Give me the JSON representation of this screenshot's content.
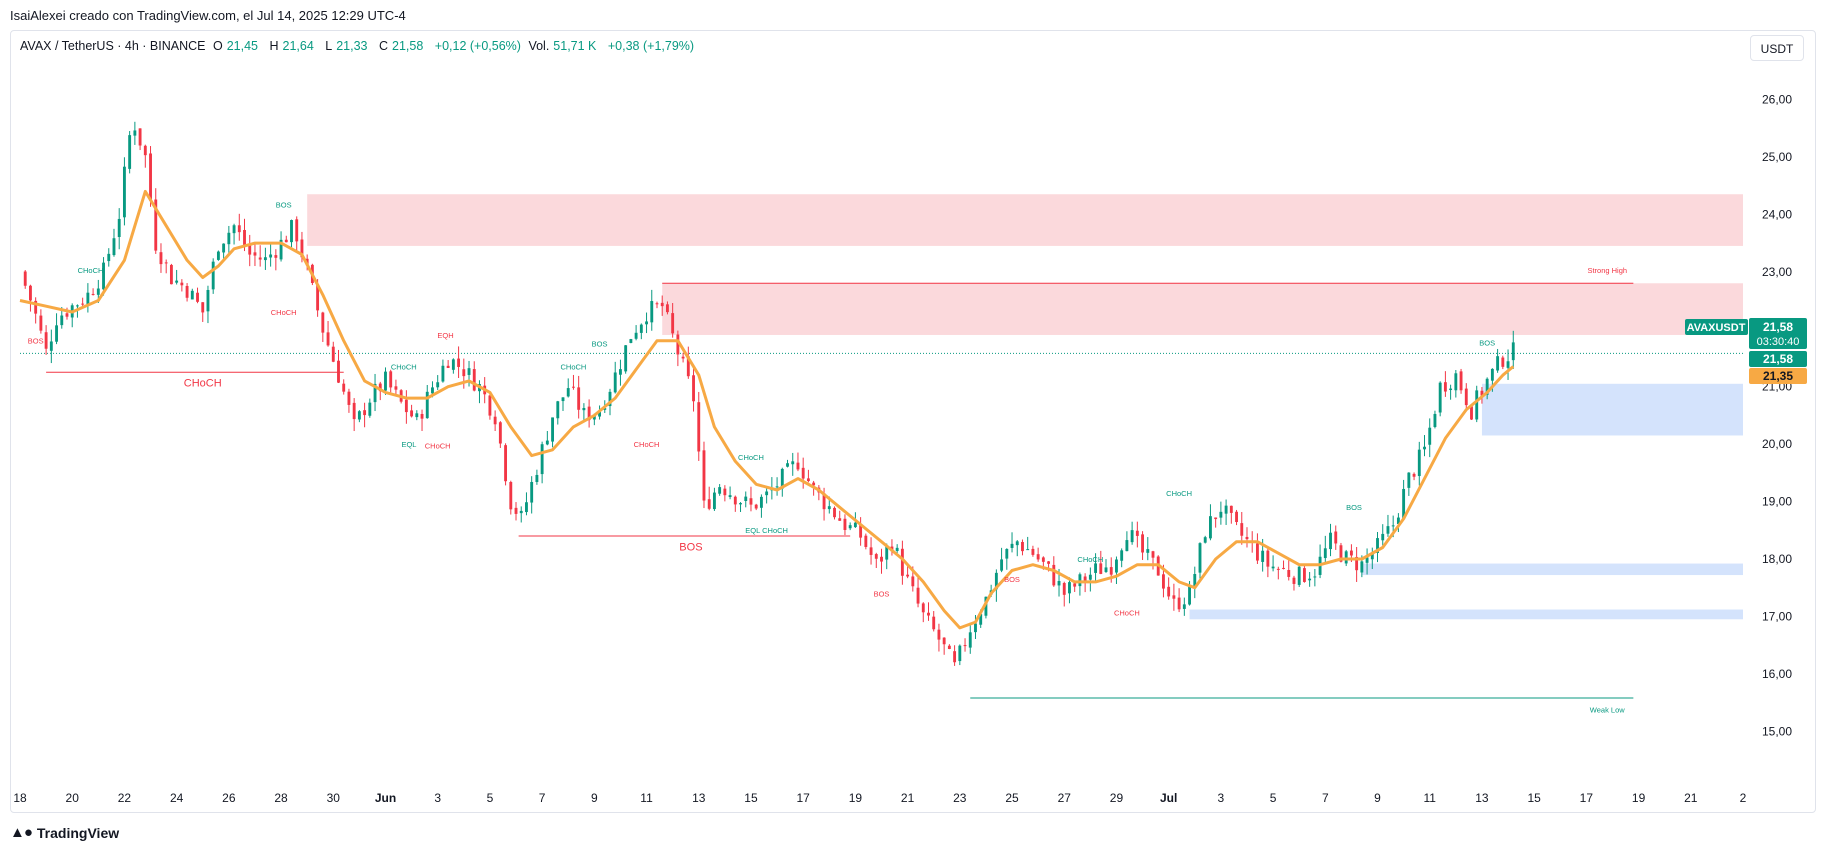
{
  "attribution": "IsaiAlexei creado con TradingView.com, el Jul 14, 2025 12:29 UTC-4",
  "legend": {
    "symbol": "AVAX / TetherUS · 4h · BINANCE",
    "o_label": "O",
    "o_value": "21,45",
    "h_label": "H",
    "h_value": "21,64",
    "l_label": "L",
    "l_value": "21,33",
    "c_label": "C",
    "c_value": "21,58",
    "change": "+0,12 (+0,56%)",
    "vol_label": "Vol.",
    "vol_value": "51,71 K",
    "vol_change": "+0,38 (+1,79%)"
  },
  "currency_badge": "USDT",
  "footer_brand": "TradingView",
  "colors": {
    "up": "#089981",
    "down": "#f23645",
    "ema": "#f7a944",
    "supply": "#fbd5d8",
    "demand": "#cfe0fc",
    "grid": "#e0e3eb",
    "axis_text": "#131722"
  },
  "price_badges": {
    "symbol_tag": "AVAXUSDT",
    "last": "21,58",
    "countdown": "03:30:40",
    "second": "21,58",
    "ema": "21,35"
  },
  "chart_data": {
    "type": "candlestick",
    "timeframe": "4h",
    "ylim": [
      14.5,
      26.6
    ],
    "yticks": [
      {
        "value": 26,
        "label": "26,00"
      },
      {
        "value": 25,
        "label": "25,00"
      },
      {
        "value": 24,
        "label": "24,00"
      },
      {
        "value": 23,
        "label": "23,00"
      },
      {
        "value": 22,
        "label": "22,00"
      },
      {
        "value": 21,
        "label": "21,00"
      },
      {
        "value": 20,
        "label": "20,00"
      },
      {
        "value": 19,
        "label": "19,00"
      },
      {
        "value": 18,
        "label": "18,00"
      },
      {
        "value": 17,
        "label": "17,00"
      },
      {
        "value": 16,
        "label": "16,00"
      },
      {
        "value": 15,
        "label": "15,00"
      }
    ],
    "xlim_days": [
      0,
      33
    ],
    "xticks": [
      {
        "day": 0,
        "label": "18"
      },
      {
        "day": 1,
        "label": "20"
      },
      {
        "day": 2,
        "label": "22"
      },
      {
        "day": 3,
        "label": "24"
      },
      {
        "day": 4,
        "label": "26"
      },
      {
        "day": 5,
        "label": "28"
      },
      {
        "day": 6,
        "label": "30"
      },
      {
        "day": 7,
        "label": "Jun",
        "bold": true
      },
      {
        "day": 8,
        "label": "3"
      },
      {
        "day": 9,
        "label": "5"
      },
      {
        "day": 10,
        "label": "7"
      },
      {
        "day": 11,
        "label": "9"
      },
      {
        "day": 12,
        "label": "11"
      },
      {
        "day": 13,
        "label": "13"
      },
      {
        "day": 14,
        "label": "15"
      },
      {
        "day": 15,
        "label": "17"
      },
      {
        "day": 16,
        "label": "19"
      },
      {
        "day": 17,
        "label": "21"
      },
      {
        "day": 18,
        "label": "23"
      },
      {
        "day": 19,
        "label": "25"
      },
      {
        "day": 20,
        "label": "27"
      },
      {
        "day": 21,
        "label": "29"
      },
      {
        "day": 22,
        "label": "Jul",
        "bold": true
      },
      {
        "day": 23,
        "label": "3"
      },
      {
        "day": 24,
        "label": "5"
      },
      {
        "day": 25,
        "label": "7"
      },
      {
        "day": 26,
        "label": "9"
      },
      {
        "day": 27,
        "label": "11"
      },
      {
        "day": 28,
        "label": "13"
      },
      {
        "day": 29,
        "label": "15"
      },
      {
        "day": 30,
        "label": "17"
      },
      {
        "day": 31,
        "label": "19"
      },
      {
        "day": 32,
        "label": "21"
      },
      {
        "day": 33,
        "label": "2"
      }
    ],
    "price_path": [
      [
        0,
        23.0
      ],
      [
        0.25,
        22.4
      ],
      [
        0.5,
        21.6
      ],
      [
        0.7,
        22.2
      ],
      [
        1.0,
        22.4
      ],
      [
        1.3,
        22.6
      ],
      [
        1.6,
        23.0
      ],
      [
        1.9,
        24.0
      ],
      [
        2.15,
        25.7
      ],
      [
        2.4,
        25.0
      ],
      [
        2.6,
        23.5
      ],
      [
        2.9,
        22.9
      ],
      [
        3.2,
        22.7
      ],
      [
        3.5,
        22.3
      ],
      [
        3.8,
        23.5
      ],
      [
        4.1,
        23.8
      ],
      [
        4.4,
        23.3
      ],
      [
        4.7,
        23.2
      ],
      [
        5.0,
        23.5
      ],
      [
        5.25,
        23.8
      ],
      [
        5.5,
        23.0
      ],
      [
        5.8,
        22.0
      ],
      [
        6.1,
        21.2
      ],
      [
        6.4,
        20.3
      ],
      [
        6.7,
        20.8
      ],
      [
        7.0,
        21.1
      ],
      [
        7.3,
        20.7
      ],
      [
        7.6,
        20.4
      ],
      [
        7.9,
        21.0
      ],
      [
        8.2,
        21.5
      ],
      [
        8.5,
        21.3
      ],
      [
        8.8,
        21.0
      ],
      [
        9.1,
        20.5
      ],
      [
        9.4,
        19.0
      ],
      [
        9.6,
        18.7
      ],
      [
        9.9,
        19.6
      ],
      [
        10.2,
        20.5
      ],
      [
        10.5,
        21.0
      ],
      [
        10.8,
        20.5
      ],
      [
        11.1,
        20.6
      ],
      [
        11.4,
        21.2
      ],
      [
        11.7,
        21.9
      ],
      [
        12.0,
        22.3
      ],
      [
        12.3,
        22.4
      ],
      [
        12.6,
        21.6
      ],
      [
        12.9,
        20.8
      ],
      [
        13.1,
        18.9
      ],
      [
        13.4,
        19.3
      ],
      [
        13.7,
        19.1
      ],
      [
        14.0,
        18.9
      ],
      [
        14.3,
        19.1
      ],
      [
        14.6,
        19.4
      ],
      [
        14.9,
        19.7
      ],
      [
        15.2,
        19.2
      ],
      [
        15.5,
        18.9
      ],
      [
        15.8,
        18.6
      ],
      [
        16.1,
        18.4
      ],
      [
        16.4,
        17.9
      ],
      [
        16.7,
        18.3
      ],
      [
        17.0,
        17.6
      ],
      [
        17.3,
        17.0
      ],
      [
        17.6,
        16.6
      ],
      [
        17.9,
        16.1
      ],
      [
        18.2,
        16.8
      ],
      [
        18.5,
        17.3
      ],
      [
        18.8,
        18.0
      ],
      [
        19.1,
        18.3
      ],
      [
        19.4,
        18.1
      ],
      [
        19.7,
        17.8
      ],
      [
        20.0,
        17.4
      ],
      [
        20.3,
        17.6
      ],
      [
        20.6,
        17.8
      ],
      [
        20.9,
        17.9
      ],
      [
        21.2,
        18.5
      ],
      [
        21.5,
        18.1
      ],
      [
        21.8,
        17.8
      ],
      [
        22.1,
        17.2
      ],
      [
        22.4,
        17.4
      ],
      [
        22.7,
        18.5
      ],
      [
        23.0,
        18.9
      ],
      [
        23.3,
        18.5
      ],
      [
        23.6,
        18.2
      ],
      [
        23.9,
        17.9
      ],
      [
        24.2,
        17.8
      ],
      [
        24.5,
        17.7
      ],
      [
        24.8,
        17.8
      ],
      [
        25.1,
        18.3
      ],
      [
        25.4,
        18.0
      ],
      [
        25.7,
        17.9
      ],
      [
        26.0,
        18.2
      ],
      [
        26.3,
        18.6
      ],
      [
        26.6,
        19.4
      ],
      [
        26.9,
        19.9
      ],
      [
        27.2,
        21.0
      ],
      [
        27.5,
        21.2
      ],
      [
        27.8,
        20.6
      ],
      [
        28.1,
        21.1
      ],
      [
        28.4,
        21.5
      ],
      [
        28.6,
        21.6
      ]
    ],
    "ema_path": [
      [
        0,
        22.5
      ],
      [
        0.5,
        22.4
      ],
      [
        1.0,
        22.3
      ],
      [
        1.5,
        22.5
      ],
      [
        2.0,
        23.2
      ],
      [
        2.4,
        24.4
      ],
      [
        2.8,
        23.8
      ],
      [
        3.2,
        23.2
      ],
      [
        3.5,
        22.9
      ],
      [
        3.8,
        23.1
      ],
      [
        4.1,
        23.4
      ],
      [
        4.5,
        23.5
      ],
      [
        5.0,
        23.5
      ],
      [
        5.4,
        23.3
      ],
      [
        5.8,
        22.6
      ],
      [
        6.2,
        21.8
      ],
      [
        6.6,
        21.1
      ],
      [
        7.0,
        20.9
      ],
      [
        7.4,
        20.8
      ],
      [
        7.8,
        20.8
      ],
      [
        8.2,
        21.0
      ],
      [
        8.6,
        21.1
      ],
      [
        9.0,
        20.9
      ],
      [
        9.4,
        20.3
      ],
      [
        9.8,
        19.8
      ],
      [
        10.2,
        19.9
      ],
      [
        10.6,
        20.3
      ],
      [
        11.0,
        20.5
      ],
      [
        11.4,
        20.8
      ],
      [
        11.8,
        21.3
      ],
      [
        12.2,
        21.8
      ],
      [
        12.6,
        21.8
      ],
      [
        13.0,
        21.2
      ],
      [
        13.3,
        20.3
      ],
      [
        13.7,
        19.7
      ],
      [
        14.1,
        19.3
      ],
      [
        14.5,
        19.2
      ],
      [
        14.9,
        19.4
      ],
      [
        15.3,
        19.2
      ],
      [
        15.7,
        18.9
      ],
      [
        16.1,
        18.6
      ],
      [
        16.5,
        18.3
      ],
      [
        16.9,
        18.0
      ],
      [
        17.3,
        17.6
      ],
      [
        17.7,
        17.1
      ],
      [
        18.0,
        16.8
      ],
      [
        18.3,
        16.9
      ],
      [
        18.6,
        17.4
      ],
      [
        19.0,
        17.8
      ],
      [
        19.4,
        17.9
      ],
      [
        19.8,
        17.8
      ],
      [
        20.2,
        17.6
      ],
      [
        20.6,
        17.6
      ],
      [
        21.0,
        17.7
      ],
      [
        21.4,
        17.9
      ],
      [
        21.8,
        17.9
      ],
      [
        22.2,
        17.6
      ],
      [
        22.5,
        17.5
      ],
      [
        22.9,
        18.0
      ],
      [
        23.3,
        18.3
      ],
      [
        23.7,
        18.3
      ],
      [
        24.1,
        18.1
      ],
      [
        24.5,
        17.9
      ],
      [
        24.9,
        17.9
      ],
      [
        25.3,
        18.0
      ],
      [
        25.7,
        18.0
      ],
      [
        26.1,
        18.2
      ],
      [
        26.5,
        18.7
      ],
      [
        26.9,
        19.4
      ],
      [
        27.3,
        20.1
      ],
      [
        27.7,
        20.6
      ],
      [
        28.1,
        20.9
      ],
      [
        28.4,
        21.2
      ],
      [
        28.6,
        21.35
      ]
    ],
    "zones": [
      {
        "kind": "supply",
        "x0": 5.5,
        "x1": 33,
        "y0": 23.45,
        "y1": 24.35
      },
      {
        "kind": "supply",
        "x0": 12.3,
        "x1": 33,
        "y0": 21.9,
        "y1": 22.8
      },
      {
        "kind": "demand",
        "x0": 28.0,
        "x1": 33,
        "y0": 20.15,
        "y1": 21.05
      },
      {
        "kind": "demand",
        "x0": 25.7,
        "x1": 33,
        "y0": 17.72,
        "y1": 17.92
      },
      {
        "kind": "demand",
        "x0": 22.4,
        "x1": 33,
        "y0": 16.95,
        "y1": 17.12
      }
    ],
    "lines": [
      {
        "x0": 12.3,
        "x1": 30.9,
        "y": 22.8,
        "color": "down",
        "style": "solid"
      },
      {
        "x0": 18.2,
        "x1": 30.9,
        "y": 15.58,
        "color": "up",
        "style": "solid"
      },
      {
        "x0": 0.5,
        "x1": 6.2,
        "y": 21.25,
        "color": "down",
        "style": "solid"
      },
      {
        "x0": 9.55,
        "x1": 15.9,
        "y": 18.4,
        "color": "down",
        "style": "solid"
      },
      {
        "x0": 0,
        "x1": 33,
        "y": 21.58,
        "color": "up",
        "style": "dotted"
      }
    ],
    "annotations": [
      {
        "text": "CHoCH",
        "x": 3.5,
        "y": 21.0,
        "color": "down",
        "size": "big"
      },
      {
        "text": "BOS",
        "x": 12.85,
        "y": 18.15,
        "color": "down",
        "size": "big"
      },
      {
        "text": "Strong High",
        "x": 30.4,
        "y": 22.98,
        "color": "down",
        "size": "small"
      },
      {
        "text": "Weak Low",
        "x": 30.4,
        "y": 15.33,
        "color": "up",
        "size": "small"
      },
      {
        "text": "BOS",
        "x": 0.3,
        "y": 21.75,
        "color": "down",
        "size": "small"
      },
      {
        "text": "CHoCH",
        "x": 1.35,
        "y": 22.98,
        "color": "up",
        "size": "small"
      },
      {
        "text": "BOS",
        "x": 5.05,
        "y": 24.12,
        "color": "up",
        "size": "small"
      },
      {
        "text": "CHoCH",
        "x": 5.05,
        "y": 22.25,
        "color": "down",
        "size": "small"
      },
      {
        "text": "EQH",
        "x": 8.15,
        "y": 21.85,
        "color": "down",
        "size": "small"
      },
      {
        "text": "CHoCH",
        "x": 7.35,
        "y": 21.3,
        "color": "up",
        "size": "small"
      },
      {
        "text": "EQL",
        "x": 7.45,
        "y": 19.95,
        "color": "up",
        "size": "small"
      },
      {
        "text": "CHoCH",
        "x": 8.0,
        "y": 19.92,
        "color": "down",
        "size": "small"
      },
      {
        "text": "CHoCH",
        "x": 10.6,
        "y": 21.3,
        "color": "up",
        "size": "small"
      },
      {
        "text": "BOS",
        "x": 11.1,
        "y": 21.7,
        "color": "up",
        "size": "small"
      },
      {
        "text": "CHoCH",
        "x": 12.0,
        "y": 19.95,
        "color": "down",
        "size": "small"
      },
      {
        "text": "CHoCH",
        "x": 14.0,
        "y": 19.72,
        "color": "up",
        "size": "small"
      },
      {
        "text": "EQL CHoCH",
        "x": 14.3,
        "y": 18.45,
        "color": "up",
        "size": "small"
      },
      {
        "text": "BOS",
        "x": 16.5,
        "y": 17.35,
        "color": "down",
        "size": "small"
      },
      {
        "text": "BOS",
        "x": 19.0,
        "y": 17.6,
        "color": "down",
        "size": "small"
      },
      {
        "text": "CHoCH",
        "x": 20.5,
        "y": 17.95,
        "color": "up",
        "size": "small"
      },
      {
        "text": "CHoCH",
        "x": 21.2,
        "y": 17.02,
        "color": "down",
        "size": "small"
      },
      {
        "text": "CHoCH",
        "x": 22.2,
        "y": 19.1,
        "color": "up",
        "size": "small"
      },
      {
        "text": "BOS",
        "x": 25.55,
        "y": 18.85,
        "color": "up",
        "size": "small"
      },
      {
        "text": "BOS",
        "x": 28.1,
        "y": 21.72,
        "color": "up",
        "size": "small"
      }
    ]
  }
}
